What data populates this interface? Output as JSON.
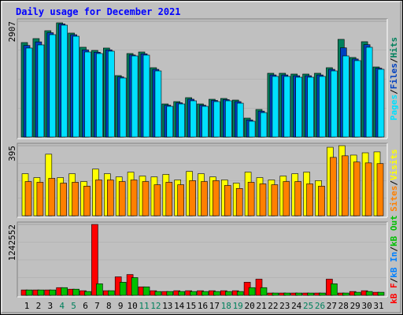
{
  "title": "Daily usage for December 2021",
  "legend_separator": "/",
  "chart_data": [
    {
      "type": "bar",
      "ylim": [
        0,
        2907
      ],
      "yticks": [
        2907
      ],
      "legend_reversed": true,
      "series": [
        {
          "name": "Hits",
          "color": "#00805c",
          "values": [
            2373,
            2472,
            2670,
            2868,
            2611,
            2255,
            2176,
            2235,
            1543,
            2097,
            2136,
            1741,
            831,
            890,
            989,
            831,
            949,
            969,
            929,
            475,
            692,
            1602,
            1602,
            1582,
            1582,
            1602,
            1741,
            2453,
            1998,
            2394,
            1760
          ]
        },
        {
          "name": "Files",
          "color": "#0040c0",
          "values": [
            2300,
            2390,
            2620,
            2840,
            2570,
            2190,
            2130,
            2190,
            1510,
            2060,
            2090,
            1700,
            800,
            860,
            950,
            800,
            920,
            940,
            890,
            430,
            650,
            1560,
            1560,
            1540,
            1540,
            1560,
            1700,
            2240,
            1960,
            2320,
            1730
          ]
        },
        {
          "name": "Pages",
          "color": "#00e0ff",
          "values": [
            2235,
            2314,
            2571,
            2809,
            2531,
            2136,
            2097,
            2156,
            1483,
            2037,
            2057,
            1661,
            771,
            831,
            910,
            771,
            890,
            910,
            850,
            396,
            613,
            1523,
            1523,
            1503,
            1503,
            1523,
            1661,
            2037,
            1919,
            2255,
            1701
          ]
        }
      ]
    },
    {
      "type": "bar",
      "ylim": [
        0,
        395
      ],
      "yticks": [
        395
      ],
      "legend_reversed": true,
      "series": [
        {
          "name": "Visits",
          "color": "#ffff00",
          "values": [
            237,
            215,
            347,
            215,
            237,
            193,
            263,
            237,
            219,
            246,
            224,
            219,
            233,
            202,
            250,
            237,
            219,
            202,
            184,
            246,
            215,
            202,
            224,
            237,
            246,
            198,
            386,
            395,
            342,
            355,
            360
          ]
        },
        {
          "name": "Sites",
          "color": "#ff8000",
          "values": [
            193,
            189,
            211,
            184,
            189,
            167,
            202,
            202,
            193,
            202,
            193,
            175,
            189,
            175,
            198,
            193,
            198,
            171,
            154,
            189,
            180,
            175,
            193,
            193,
            180,
            167,
            329,
            338,
            303,
            298,
            294
          ]
        }
      ]
    },
    {
      "type": "bar",
      "ylim": [
        0,
        1242552
      ],
      "yticks": [
        1242552
      ],
      "legend_reversed": false,
      "categories": [
        "1",
        "2",
        "3",
        "4",
        "5",
        "6",
        "7",
        "8",
        "9",
        "10",
        "11",
        "12",
        "13",
        "14",
        "15",
        "16",
        "17",
        "18",
        "19",
        "20",
        "21",
        "22",
        "23",
        "24",
        "25",
        "26",
        "27",
        "28",
        "29",
        "30",
        "31"
      ],
      "category_colors": [
        "#000000",
        "#000000",
        "#000000",
        "#00805c",
        "#00805c",
        "#000000",
        "#000000",
        "#000000",
        "#000000",
        "#000000",
        "#00805c",
        "#00805c",
        "#000000",
        "#000000",
        "#000000",
        "#000000",
        "#000000",
        "#00805c",
        "#00805c",
        "#000000",
        "#000000",
        "#000000",
        "#000000",
        "#000000",
        "#00805c",
        "#00805c",
        "#000000",
        "#000000",
        "#000000",
        "#000000",
        "#000000"
      ],
      "series": [
        {
          "name": "kB F",
          "color": "#ff0000",
          "values": [
            94542,
            94542,
            94542,
            135060,
            108048,
            81036,
            1242552,
            81036,
            324144,
            364662,
            148566,
            81036,
            67530,
            81036,
            81036,
            81036,
            81036,
            81036,
            81036,
            229602,
            283626,
            40518,
            40518,
            40518,
            40518,
            40518,
            283626,
            40518,
            67530,
            81036,
            54024
          ]
        },
        {
          "name": "kB In",
          "color": "#0080ff",
          "values": [
            0,
            0,
            0,
            0,
            0,
            0,
            0,
            0,
            0,
            0,
            0,
            0,
            0,
            0,
            0,
            0,
            0,
            0,
            0,
            0,
            0,
            0,
            0,
            0,
            0,
            0,
            0,
            0,
            0,
            0,
            0
          ]
        },
        {
          "name": "kB Out",
          "color": "#00c000",
          "values": [
            94542,
            94542,
            94542,
            135060,
            108048,
            67530,
            202590,
            81036,
            229602,
            310638,
            148566,
            67530,
            67530,
            67530,
            67530,
            67530,
            67530,
            67530,
            67530,
            135060,
            135060,
            40518,
            40518,
            40518,
            40518,
            40518,
            202590,
            40518,
            54024,
            67530,
            54024
          ]
        }
      ]
    }
  ]
}
